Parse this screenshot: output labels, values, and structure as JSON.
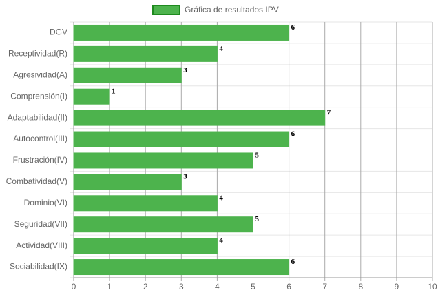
{
  "chart_data": {
    "type": "hbar",
    "categories": [
      "DGV",
      "Receptividad(R)",
      "Agresividad(A)",
      "Comprensión(I)",
      "Adaptabilidad(II)",
      "Autocontrol(III)",
      "Frustración(IV)",
      "Combatividad(V)",
      "Dominio(VI)",
      "Seguridad(VII)",
      "Actividad(VIII)",
      "Sociabilidad(IX)"
    ],
    "series": [
      {
        "name": "Gráfica de resultados IPV",
        "color": "#4db34d",
        "border_color": "#1e8a1e",
        "values": [
          6,
          4,
          3,
          1,
          7,
          6,
          5,
          3,
          4,
          5,
          4,
          6
        ]
      }
    ],
    "xlim": [
      0,
      10
    ],
    "xticks": [
      0,
      1,
      2,
      3,
      4,
      5,
      6,
      7,
      8,
      9,
      10
    ],
    "grid": true,
    "legend": "top"
  }
}
